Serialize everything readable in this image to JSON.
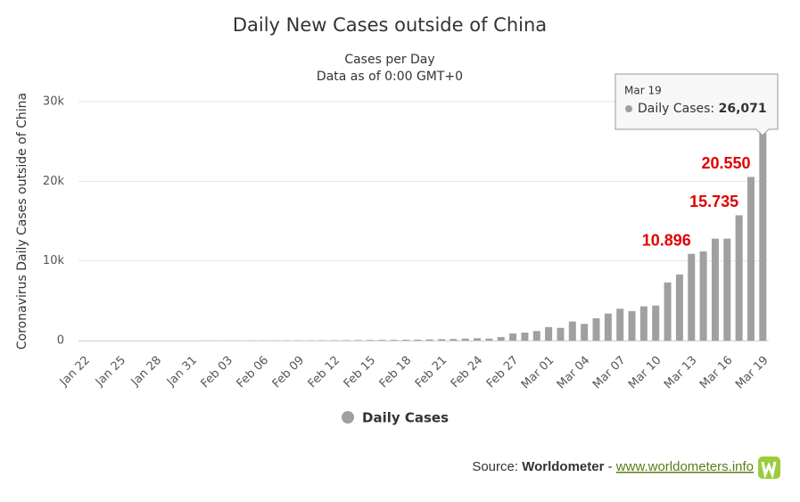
{
  "chart_data": {
    "type": "bar",
    "title": "Daily New Cases outside of China",
    "subtitle": [
      "Cases per Day",
      "Data as of 0:00 GMT+0"
    ],
    "y_label": "Coronavirus Daily Cases outside of China",
    "categories": [
      "Jan 22",
      null,
      null,
      "Jan 25",
      null,
      null,
      "Jan 28",
      null,
      null,
      "Jan 31",
      null,
      null,
      "Feb 03",
      null,
      null,
      "Feb 06",
      null,
      null,
      "Feb 09",
      null,
      null,
      "Feb 12",
      null,
      null,
      "Feb 15",
      null,
      null,
      "Feb 18",
      null,
      null,
      "Feb 21",
      null,
      null,
      "Feb 24",
      null,
      null,
      "Feb 27",
      null,
      null,
      "Mar 01",
      null,
      null,
      "Mar 04",
      null,
      null,
      "Mar 07",
      null,
      null,
      "Mar 10",
      null,
      null,
      "Mar 13",
      null,
      null,
      "Mar 16",
      null,
      null,
      "Mar 19"
    ],
    "series": [
      {
        "name": "Daily Cases",
        "color": "#a0a0a0",
        "values": [
          0,
          0,
          0,
          0,
          0,
          0,
          0,
          0,
          0,
          0,
          10,
          10,
          10,
          10,
          20,
          20,
          20,
          30,
          30,
          30,
          40,
          50,
          60,
          70,
          80,
          90,
          100,
          110,
          120,
          150,
          180,
          200,
          250,
          300,
          250,
          450,
          900,
          1000,
          1200,
          1700,
          1600,
          2400,
          2100,
          2800,
          3400,
          4000,
          3700,
          4300,
          4400,
          7300,
          8300,
          10896,
          11200,
          12800,
          12800,
          15735,
          20550,
          26071
        ],
        "value_labels": [
          null,
          null,
          null,
          null,
          null,
          null,
          null,
          null,
          null,
          null,
          null,
          null,
          null,
          null,
          null,
          null,
          null,
          null,
          null,
          null,
          null,
          null,
          null,
          null,
          null,
          null,
          null,
          null,
          null,
          null,
          null,
          null,
          null,
          null,
          null,
          null,
          null,
          null,
          null,
          null,
          null,
          null,
          null,
          null,
          null,
          null,
          null,
          null,
          null,
          null,
          null,
          "10.896",
          null,
          null,
          null,
          "15.735",
          "20.550",
          null
        ]
      }
    ],
    "ylim": [
      0,
      30000
    ],
    "yticks": [
      0,
      {
        "value": 10000,
        "label": "10k"
      },
      {
        "value": 20000,
        "label": "20k"
      },
      {
        "value": 30000,
        "label": "30k"
      }
    ],
    "grid": true,
    "legend": "bottom",
    "tooltip": {
      "date": "Mar 19",
      "label": "Daily Cases:",
      "value": "26,071"
    },
    "source": {
      "prefix": "Source:",
      "name": "Worldometer",
      "separator": "-",
      "link": "www.worldometers.info"
    }
  }
}
